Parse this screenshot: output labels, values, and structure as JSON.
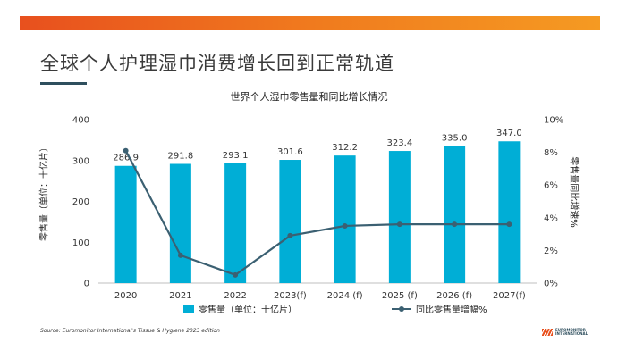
{
  "slide": {
    "title": "全球个人护理湿巾消费增长回到正常轨道",
    "source": "Source: Euromonitor International's Tissue & Hygiene 2023 edition",
    "logo_text_line1": "EUROMONITOR",
    "logo_text_line2": "INTERNATIONAL",
    "accent_color": "#e8501e"
  },
  "chart_data": {
    "type": "bar+line",
    "title": "世界个人湿巾零售量和同比增长情况",
    "categories": [
      "2020",
      "2021",
      "2022",
      "2023(f)",
      "2024 (f)",
      "2025 (f)",
      "2026 (f)",
      "2027(f)"
    ],
    "ylabel_left": "零售量（单位：十亿片）",
    "ylabel_right": "零售量同比增速%",
    "y_left_ticks": [
      "0",
      "100",
      "200",
      "300",
      "400"
    ],
    "y_left_range": [
      0,
      400
    ],
    "y_right_ticks": [
      "0%",
      "2%",
      "4%",
      "6%",
      "8%",
      "10%"
    ],
    "y_right_range": [
      0,
      10
    ],
    "series": [
      {
        "name": "零售量（单位：十亿片）",
        "kind": "bar",
        "axis": "left",
        "color": "#00aed6",
        "values": [
          286.9,
          291.8,
          293.1,
          301.6,
          312.2,
          323.4,
          335.0,
          347.0
        ],
        "labels": [
          "286.9",
          "291.8",
          "293.1",
          "301.6",
          "312.2",
          "323.4",
          "335.0",
          "347.0"
        ]
      },
      {
        "name": "同比零售量增幅%",
        "kind": "line",
        "axis": "right",
        "color": "#3b6072",
        "values": [
          8.1,
          1.7,
          0.5,
          2.9,
          3.5,
          3.6,
          3.6,
          3.6
        ]
      }
    ],
    "legend": "bottom",
    "grid": false
  }
}
